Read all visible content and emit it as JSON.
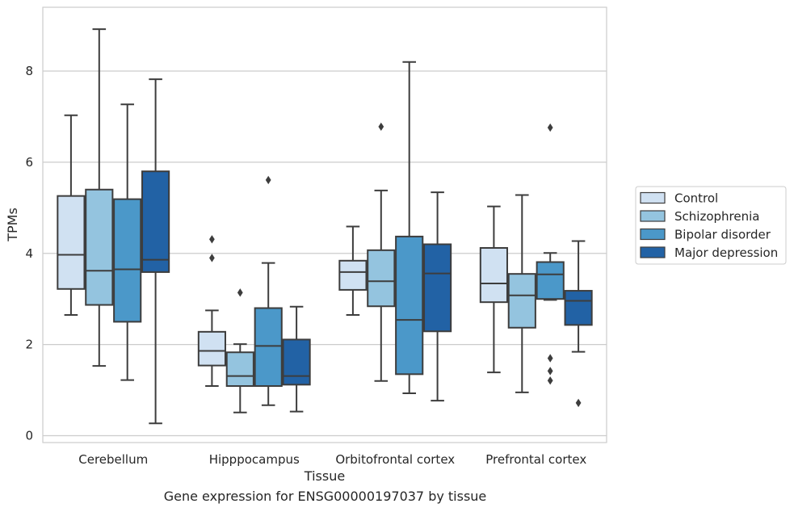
{
  "caption": "Gene expression for ENSG00000197037 by tissue",
  "chart_data": {
    "type": "box",
    "xlabel": "Tissue",
    "ylabel": "TPMs",
    "ylim": [
      -0.15,
      9.4
    ],
    "yticks": [
      0,
      2,
      4,
      6,
      8
    ],
    "grid": "horizontal",
    "legend_position": "right",
    "categories": [
      "Cerebellum",
      "Hipppocampus",
      "Orbitofrontal cortex",
      "Prefrontal cortex"
    ],
    "series": [
      {
        "name": "Control",
        "color": "#d0e1f2",
        "boxes": [
          {
            "whislo": 2.65,
            "q1": 3.22,
            "med": 3.97,
            "q3": 5.26,
            "whishi": 7.03,
            "fliers": []
          },
          {
            "whislo": 1.09,
            "q1": 1.54,
            "med": 1.86,
            "q3": 2.28,
            "whishi": 2.75,
            "fliers": [
              4.31,
              3.9
            ]
          },
          {
            "whislo": 2.65,
            "q1": 3.2,
            "med": 3.59,
            "q3": 3.84,
            "whishi": 4.59,
            "fliers": []
          },
          {
            "whislo": 1.39,
            "q1": 2.93,
            "med": 3.34,
            "q3": 4.12,
            "whishi": 5.03,
            "fliers": []
          }
        ]
      },
      {
        "name": "Schizophrenia",
        "color": "#94c4df",
        "boxes": [
          {
            "whislo": 1.53,
            "q1": 2.87,
            "med": 3.62,
            "q3": 5.4,
            "whishi": 8.92,
            "fliers": []
          },
          {
            "whislo": 0.51,
            "q1": 1.09,
            "med": 1.31,
            "q3": 1.83,
            "whishi": 2.01,
            "fliers": [
              3.14
            ]
          },
          {
            "whislo": 1.2,
            "q1": 2.84,
            "med": 3.39,
            "q3": 4.07,
            "whishi": 5.38,
            "fliers": [
              6.78
            ]
          },
          {
            "whislo": 0.95,
            "q1": 2.37,
            "med": 3.08,
            "q3": 3.55,
            "whishi": 5.28,
            "fliers": []
          }
        ]
      },
      {
        "name": "Bipolar disorder",
        "color": "#4b98c9",
        "boxes": [
          {
            "whislo": 1.22,
            "q1": 2.5,
            "med": 3.65,
            "q3": 5.19,
            "whishi": 7.27,
            "fliers": []
          },
          {
            "whislo": 0.67,
            "q1": 1.09,
            "med": 1.97,
            "q3": 2.8,
            "whishi": 3.79,
            "fliers": [
              5.61
            ]
          },
          {
            "whislo": 0.93,
            "q1": 1.35,
            "med": 2.54,
            "q3": 4.37,
            "whishi": 8.2,
            "fliers": []
          },
          {
            "whislo": 2.98,
            "q1": 3.0,
            "med": 3.54,
            "q3": 3.81,
            "whishi": 4.01,
            "fliers": [
              6.76,
              1.7,
              1.42,
              1.21
            ]
          }
        ]
      },
      {
        "name": "Major depression",
        "color": "#2262a5",
        "boxes": [
          {
            "whislo": 0.27,
            "q1": 3.59,
            "med": 3.86,
            "q3": 5.8,
            "whishi": 7.82,
            "fliers": []
          },
          {
            "whislo": 0.53,
            "q1": 1.12,
            "med": 1.31,
            "q3": 2.11,
            "whishi": 2.83,
            "fliers": []
          },
          {
            "whislo": 0.77,
            "q1": 2.29,
            "med": 3.56,
            "q3": 4.2,
            "whishi": 5.34,
            "fliers": []
          },
          {
            "whislo": 1.84,
            "q1": 2.43,
            "med": 2.96,
            "q3": 3.18,
            "whishi": 4.27,
            "fliers": [
              0.72
            ]
          }
        ]
      }
    ]
  }
}
